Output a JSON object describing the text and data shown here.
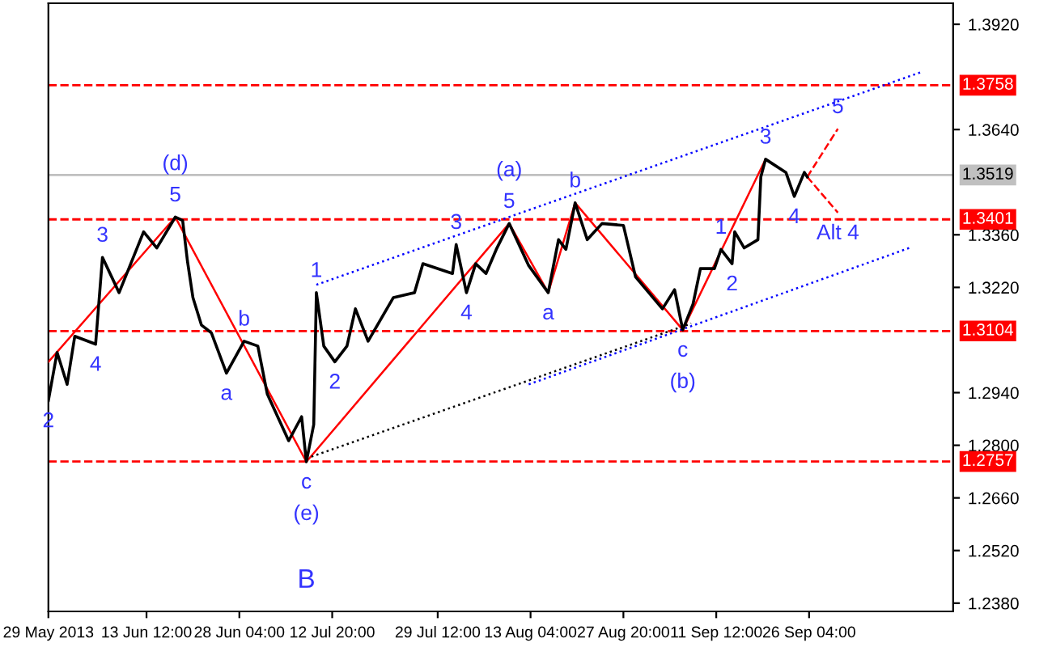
{
  "chart_data": {
    "type": "line",
    "xlim": [
      "2013-05-29T00:00",
      "2013-10-18T22:00"
    ],
    "ylim": [
      1.2358,
      1.3976
    ],
    "xticks": [
      {
        "value": "2013-05-29T00:00",
        "label": "29 May 2013"
      },
      {
        "value": "2013-06-13T12:00",
        "label": "13 Jun 12:00"
      },
      {
        "value": "2013-06-28T04:00",
        "label": "28 Jun 04:00"
      },
      {
        "value": "2013-07-12T20:00",
        "label": "12 Jul 20:00"
      },
      {
        "value": "2013-07-29T12:00",
        "label": "29 Jul 12:00"
      },
      {
        "value": "2013-08-13T04:00",
        "label": "13 Aug 04:00"
      },
      {
        "value": "2013-08-27T20:00",
        "label": "27 Aug 20:00"
      },
      {
        "value": "2013-09-11T12:00",
        "label": "11 Sep 12:00"
      },
      {
        "value": "2013-09-26T04:00",
        "label": "26 Sep 04:00"
      }
    ],
    "yticks": [
      {
        "value": 1.238,
        "label": "1.2380"
      },
      {
        "value": 1.252,
        "label": "1.2520"
      },
      {
        "value": 1.266,
        "label": "1.2660"
      },
      {
        "value": 1.28,
        "label": "1.2800"
      },
      {
        "value": 1.294,
        "label": "1.2940"
      },
      {
        "value": 1.322,
        "label": "1.3220"
      },
      {
        "value": 1.336,
        "label": "1.3360"
      },
      {
        "value": 1.364,
        "label": "1.3640"
      },
      {
        "value": 1.392,
        "label": "1.3920"
      }
    ],
    "grid": false,
    "legend": false,
    "series": [
      {
        "color": "#000000",
        "line_style": "solid",
        "x": [
          "2013-05-29T00:00",
          "2013-05-30T09:00",
          "2013-05-31T23:00",
          "2013-06-02T04:00",
          "2013-06-05T11:00",
          "2013-06-06T13:00",
          "2013-06-09T04:00",
          "2013-06-13T01:00",
          "2013-06-15T03:00",
          "2013-06-18T01:00",
          "2013-06-19T05:00",
          "2013-06-19T23:00",
          "2013-06-20T20:00",
          "2013-06-22T04:00",
          "2013-06-23T18:00",
          "2013-06-26T03:00",
          "2013-06-28T22:00",
          "2013-07-01T02:00",
          "2013-07-02T14:00",
          "2013-07-05T23:00",
          "2013-07-08T00:00",
          "2013-07-08T18:00",
          "2013-07-09T22:00",
          "2013-07-10T08:00",
          "2013-07-11T12:00",
          "2013-07-13T06:00",
          "2013-07-15T04:00",
          "2013-07-16T12:00",
          "2013-07-18T12:00",
          "2013-07-22T12:00",
          "2013-07-25T20:00",
          "2013-07-27T04:00",
          "2013-07-31T20:00",
          "2013-08-01T10:00",
          "2013-08-03T01:00",
          "2013-08-04T12:00",
          "2013-08-06T03:00",
          "2013-08-07T18:00",
          "2013-08-09T19:00",
          "2013-08-12T21:00",
          "2013-08-15T23:00",
          "2013-08-17T14:00",
          "2013-08-18T18:00",
          "2013-08-20T05:00",
          "2013-08-22T03:00",
          "2013-08-24T11:00",
          "2013-08-27T20:00",
          "2013-08-29T18:00",
          "2013-09-03T00:00",
          "2013-09-04T22:00",
          "2013-09-06T05:00",
          "2013-09-07T20:00",
          "2013-09-09T00:00",
          "2013-09-11T05:00",
          "2013-09-12T06:00",
          "2013-09-14T00:00",
          "2013-09-14T10:00",
          "2013-09-15T22:00",
          "2013-09-18T02:00",
          "2013-09-18T13:00",
          "2013-09-19T07:00",
          "2013-09-22T12:00",
          "2013-09-23T20:00",
          "2013-09-25T10:00",
          "2013-09-25T21:00"
        ],
        "values": [
          1.2919,
          1.3047,
          1.2962,
          1.309,
          1.3069,
          1.33,
          1.3206,
          1.3368,
          1.3325,
          1.3407,
          1.3398,
          1.3291,
          1.3193,
          1.312,
          1.3099,
          1.2992,
          1.3077,
          1.3064,
          1.2936,
          1.2812,
          1.2876,
          1.2756,
          1.2855,
          1.3206,
          1.3064,
          1.3022,
          1.3064,
          1.3163,
          1.3077,
          1.3193,
          1.3206,
          1.3283,
          1.3257,
          1.3334,
          1.3206,
          1.3283,
          1.3257,
          1.3321,
          1.339,
          1.3278,
          1.3206,
          1.3347,
          1.3321,
          1.3445,
          1.3347,
          1.339,
          1.3385,
          1.3248,
          1.3163,
          1.3214,
          1.3107,
          1.3176,
          1.327,
          1.327,
          1.3321,
          1.3283,
          1.3368,
          1.3325,
          1.3347,
          1.3514,
          1.3561,
          1.3526,
          1.3462,
          1.3526,
          1.3514
        ]
      },
      {
        "color": "#ff0000",
        "line_style": "solid",
        "x": [
          "2013-05-29T00:00",
          "2013-06-18T01:00",
          "2013-07-08T18:00",
          "2013-08-09T19:00",
          "2013-08-15T23:00",
          "2013-08-20T05:00",
          "2013-09-06T05:00",
          "2013-09-19T07:00"
        ],
        "values": [
          1.3022,
          1.3407,
          1.2756,
          1.339,
          1.3206,
          1.3445,
          1.3107,
          1.3561
        ]
      },
      {
        "color": "#ff0000",
        "line_style": "dashed",
        "x": [
          "2013-09-25T21:00",
          "2013-09-30T17:00"
        ],
        "values": [
          1.3514,
          1.3642
        ]
      },
      {
        "color": "#ff0000",
        "line_style": "dashed",
        "x": [
          "2013-09-25T21:00",
          "2013-09-30T17:00"
        ],
        "values": [
          1.3514,
          1.3419
        ]
      },
      {
        "color": "#0000ff",
        "line_style": "dotted",
        "x": [
          "2013-07-10T08:00",
          "2013-10-13T18:00"
        ],
        "values": [
          1.3227,
          1.3792
        ]
      },
      {
        "color": "#0000ff",
        "line_style": "dotted",
        "x": [
          "2013-08-12T21:00",
          "2013-10-12T00:00"
        ],
        "values": [
          1.2962,
          1.3325
        ]
      },
      {
        "color": "#000000",
        "line_style": "dotted",
        "x": [
          "2013-07-08T18:00",
          "2013-09-07T13:00"
        ],
        "values": [
          1.2765,
          1.3124
        ]
      }
    ],
    "ref_lines": [
      {
        "axis": "y",
        "value": 1.3758,
        "label": "1.3758",
        "color": "#ff0000",
        "line_style": "dashed"
      },
      {
        "axis": "y",
        "value": 1.3519,
        "label": "1.3519",
        "color": "#c0c0c0",
        "line_style": "solid"
      },
      {
        "axis": "y",
        "value": 1.3401,
        "label": "1.3401",
        "color": "#ff0000",
        "line_style": "dashed"
      },
      {
        "axis": "y",
        "value": 1.3104,
        "label": "1.3104",
        "color": "#ff0000",
        "line_style": "dashed"
      },
      {
        "axis": "y",
        "value": 1.2757,
        "label": "1.2757",
        "color": "#ff0000",
        "line_style": "dashed"
      }
    ],
    "annotations": [
      {
        "text": "2",
        "x": "2013-05-29T00:00",
        "y": 1.2919
      },
      {
        "text": "3",
        "x": "2013-06-06T13:00",
        "y": 1.33
      },
      {
        "text": "4",
        "x": "2013-06-05T11:00",
        "y": 1.3069
      },
      {
        "text": "5",
        "x": "2013-06-18T01:00",
        "y": 1.3407
      },
      {
        "text": "(d)",
        "x": "2013-06-18T01:00",
        "y": 1.3407
      },
      {
        "text": "a",
        "x": "2013-06-26T03:00",
        "y": 1.2992
      },
      {
        "text": "b",
        "x": "2013-06-28T22:00",
        "y": 1.3077
      },
      {
        "text": "c",
        "x": "2013-07-08T18:00",
        "y": 1.2756
      },
      {
        "text": "(e)",
        "x": "2013-07-08T18:00",
        "y": 1.2756
      },
      "B",
      {
        "text": "1",
        "x": "2013-07-10T08:00",
        "y": 1.3206
      },
      {
        "text": "2",
        "x": "2013-07-13T06:00",
        "y": 1.3022
      },
      {
        "text": "3",
        "x": "2013-08-01T10:00",
        "y": 1.3334
      },
      {
        "text": "4",
        "x": "2013-08-03T01:00",
        "y": 1.3206
      },
      {
        "text": "5",
        "x": "2013-08-09T19:00",
        "y": 1.339
      },
      {
        "text": "(a)",
        "x": "2013-08-09T19:00",
        "y": 1.339
      },
      {
        "text": "a",
        "x": "2013-08-15T23:00",
        "y": 1.3206
      },
      {
        "text": "b",
        "x": "2013-08-20T05:00",
        "y": 1.3445
      },
      {
        "text": "c",
        "x": "2013-09-06T05:00",
        "y": 1.3107
      },
      {
        "text": "(b)",
        "x": "2013-09-06T05:00",
        "y": 1.3107
      },
      {
        "text": "1",
        "x": "2013-09-12T06:00",
        "y": 1.3321
      },
      {
        "text": "2",
        "x": "2013-09-14T00:00",
        "y": 1.3283
      },
      {
        "text": "3",
        "x": "2013-09-19T07:00",
        "y": 1.3561
      },
      {
        "text": "4",
        "x": "2013-09-23T20:00",
        "y": 1.3462
      },
      {
        "text": "5",
        "x": "2013-09-30T17:00",
        "y": 1.3642
      },
      {
        "text": "Alt 4",
        "x": "2013-09-30T17:00",
        "y": 1.3419
      }
    ]
  }
}
